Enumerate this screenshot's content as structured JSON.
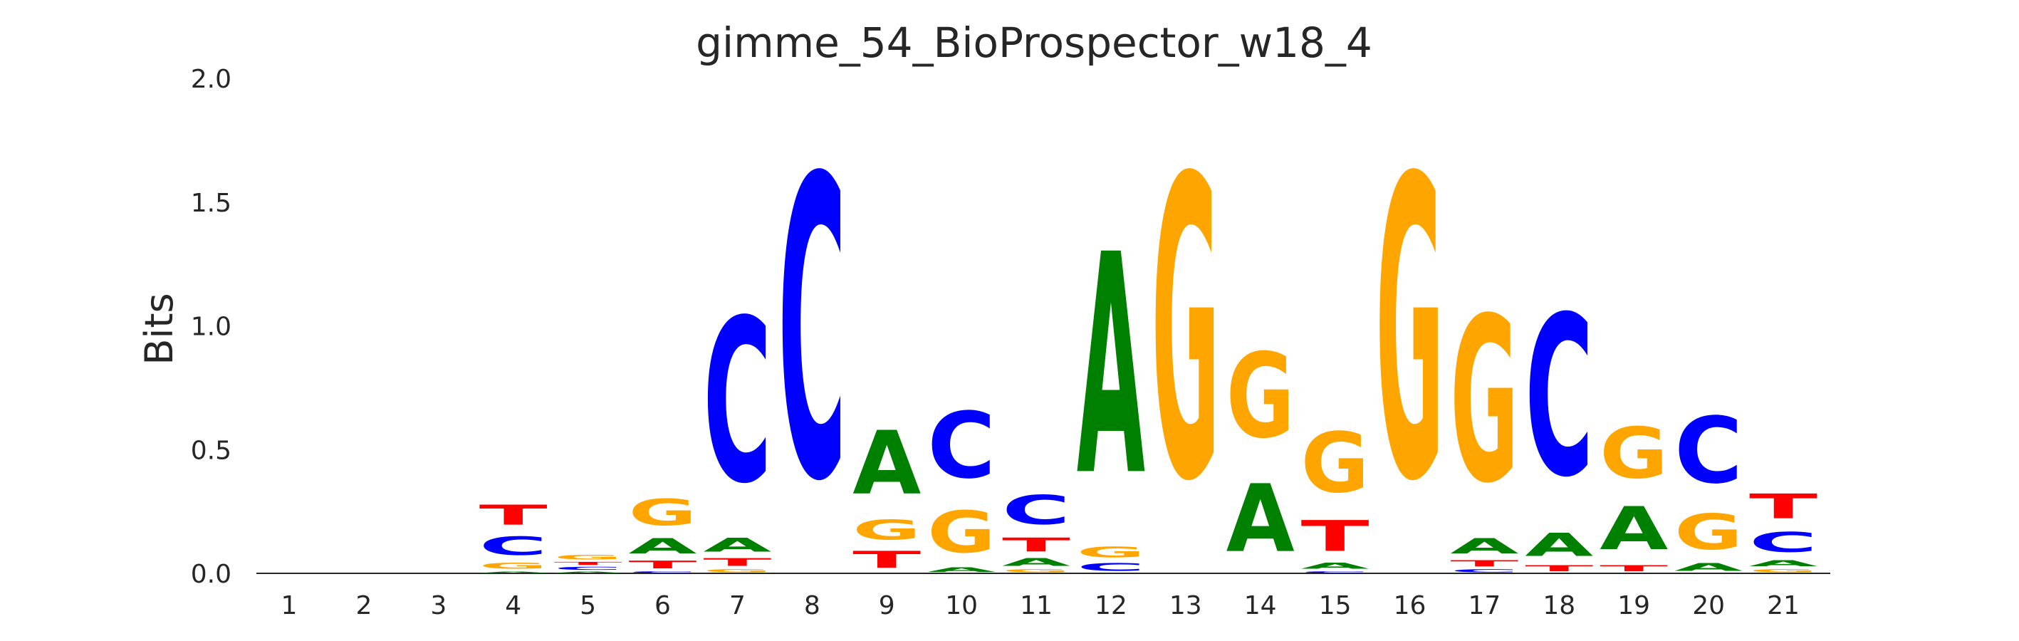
{
  "chart_data": {
    "type": "sequence_logo",
    "title": "gimme_54_BioProspector_w18_4",
    "ylabel": "Bits",
    "xlabel": "",
    "ylim": [
      0,
      2.0
    ],
    "yticks": [
      "0.0",
      "0.5",
      "1.0",
      "1.5",
      "2.0"
    ],
    "ytick_values": [
      0,
      0.5,
      1.0,
      1.5,
      2.0
    ],
    "grid": false,
    "colors": {
      "A": "#008000",
      "C": "#0000ff",
      "G": "#ffa500",
      "T": "#ff0000"
    },
    "positions": [
      {
        "label": "1",
        "letters": []
      },
      {
        "label": "2",
        "letters": []
      },
      {
        "label": "3",
        "letters": []
      },
      {
        "label": "4",
        "letters": [
          {
            "base": "A",
            "bits": 0.01
          },
          {
            "base": "G",
            "bits": 0.04
          },
          {
            "base": "C",
            "bits": 0.12
          },
          {
            "base": "T",
            "bits": 0.13
          }
        ]
      },
      {
        "label": "5",
        "letters": [
          {
            "base": "A",
            "bits": 0.01
          },
          {
            "base": "C",
            "bits": 0.02
          },
          {
            "base": "T",
            "bits": 0.02
          },
          {
            "base": "G",
            "bits": 0.03
          }
        ]
      },
      {
        "label": "6",
        "letters": [
          {
            "base": "C",
            "bits": 0.01
          },
          {
            "base": "T",
            "bits": 0.05
          },
          {
            "base": "A",
            "bits": 0.1
          },
          {
            "base": "G",
            "bits": 0.17
          }
        ]
      },
      {
        "label": "7",
        "letters": [
          {
            "base": "G",
            "bits": 0.02
          },
          {
            "base": "T",
            "bits": 0.05
          },
          {
            "base": "A",
            "bits": 0.09
          },
          {
            "base": "C",
            "bits": 1.06
          }
        ]
      },
      {
        "label": "8",
        "letters": [
          {
            "base": "C",
            "bits": 1.95
          }
        ]
      },
      {
        "label": "9",
        "letters": [
          {
            "base": "T",
            "bits": 0.11
          },
          {
            "base": "G",
            "bits": 0.13
          },
          {
            "base": "A",
            "bits": 0.41
          }
        ]
      },
      {
        "label": "10",
        "letters": [
          {
            "base": "A",
            "bits": 0.03
          },
          {
            "base": "G",
            "bits": 0.27
          },
          {
            "base": "C",
            "bits": 0.43
          }
        ]
      },
      {
        "label": "11",
        "letters": [
          {
            "base": "G",
            "bits": 0.02
          },
          {
            "base": "A",
            "bits": 0.05
          },
          {
            "base": "T",
            "bits": 0.09
          },
          {
            "base": "C",
            "bits": 0.19
          }
        ]
      },
      {
        "label": "12",
        "letters": [
          {
            "base": "C",
            "bits": 0.05
          },
          {
            "base": "G",
            "bits": 0.07
          },
          {
            "base": "A",
            "bits": 1.43
          }
        ]
      },
      {
        "label": "13",
        "letters": [
          {
            "base": "G",
            "bits": 1.95
          }
        ]
      },
      {
        "label": "14",
        "letters": [
          {
            "base": "A",
            "bits": 0.44
          },
          {
            "base": "G",
            "bits": 0.55
          }
        ]
      },
      {
        "label": "15",
        "letters": [
          {
            "base": "C",
            "bits": 0.01
          },
          {
            "base": "A",
            "bits": 0.04
          },
          {
            "base": "T",
            "bits": 0.2
          },
          {
            "base": "G",
            "bits": 0.39
          }
        ]
      },
      {
        "label": "16",
        "letters": [
          {
            "base": "G",
            "bits": 1.95
          }
        ]
      },
      {
        "label": "17",
        "letters": [
          {
            "base": "C",
            "bits": 0.02
          },
          {
            "base": "T",
            "bits": 0.04
          },
          {
            "base": "A",
            "bits": 0.1
          },
          {
            "base": "G",
            "bits": 1.07
          }
        ]
      },
      {
        "label": "18",
        "letters": [
          {
            "base": "T",
            "bits": 0.04
          },
          {
            "base": "A",
            "bits": 0.15
          },
          {
            "base": "C",
            "bits": 1.04
          }
        ]
      },
      {
        "label": "19",
        "letters": [
          {
            "base": "T",
            "bits": 0.04
          },
          {
            "base": "A",
            "bits": 0.28
          },
          {
            "base": "G",
            "bits": 0.33
          }
        ]
      },
      {
        "label": "20",
        "letters": [
          {
            "base": "A",
            "bits": 0.05
          },
          {
            "base": "G",
            "bits": 0.23
          },
          {
            "base": "C",
            "bits": 0.43
          }
        ]
      },
      {
        "label": "21",
        "letters": [
          {
            "base": "G",
            "bits": 0.02
          },
          {
            "base": "A",
            "bits": 0.04
          },
          {
            "base": "C",
            "bits": 0.13
          },
          {
            "base": "T",
            "bits": 0.16
          }
        ]
      }
    ]
  }
}
